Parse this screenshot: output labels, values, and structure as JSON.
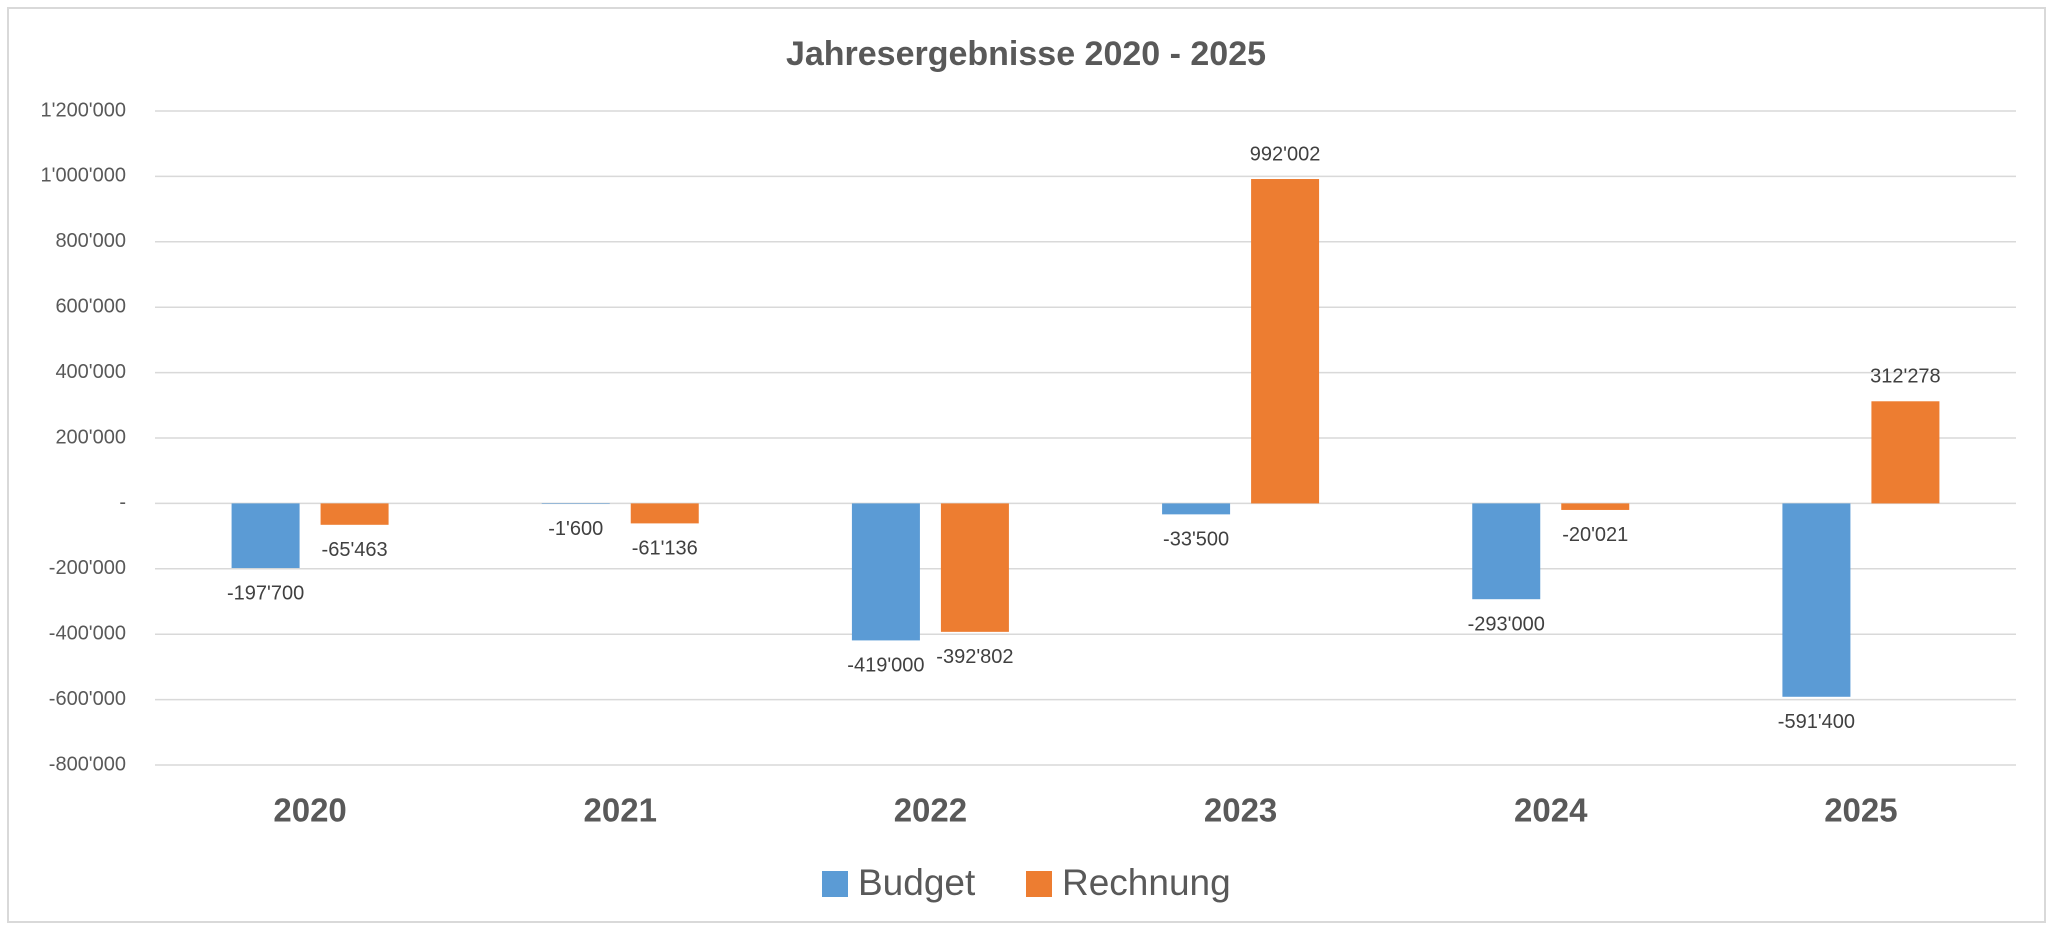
{
  "chart_data": {
    "type": "bar",
    "title": "Jahresergebnisse 2020 - 2025",
    "categories": [
      "2020",
      "2021",
      "2022",
      "2023",
      "2024",
      "2025"
    ],
    "series": [
      {
        "name": "Budget",
        "color": "#5b9bd5",
        "values": [
          -197700,
          -1600,
          -419000,
          -33500,
          -293000,
          -591400
        ],
        "value_labels": [
          "-197'700",
          "-1'600",
          "-419'000",
          "-33'500",
          "-293'000",
          "-591'400"
        ]
      },
      {
        "name": "Rechnung",
        "color": "#ed7d31",
        "values": [
          -65463,
          -61136,
          -392802,
          992002,
          -20021,
          312278
        ],
        "value_labels": [
          "-65'463",
          "-61'136",
          "-392'802",
          "992'002",
          "-20'021",
          "312'278"
        ]
      }
    ],
    "ylim": [
      -800000,
      1200000
    ],
    "yticks": [
      {
        "value": -800000,
        "label": "-800'000"
      },
      {
        "value": -600000,
        "label": "-600'000"
      },
      {
        "value": -400000,
        "label": "-400'000"
      },
      {
        "value": -200000,
        "label": "-200'000"
      },
      {
        "value": 0,
        "label": "-"
      },
      {
        "value": 200000,
        "label": "200'000"
      },
      {
        "value": 400000,
        "label": "400'000"
      },
      {
        "value": 600000,
        "label": "600'000"
      },
      {
        "value": 800000,
        "label": "800'000"
      },
      {
        "value": 1000000,
        "label": "1'000'000"
      },
      {
        "value": 1200000,
        "label": "1'200'000"
      }
    ],
    "grid": true,
    "legend": "bottom"
  }
}
